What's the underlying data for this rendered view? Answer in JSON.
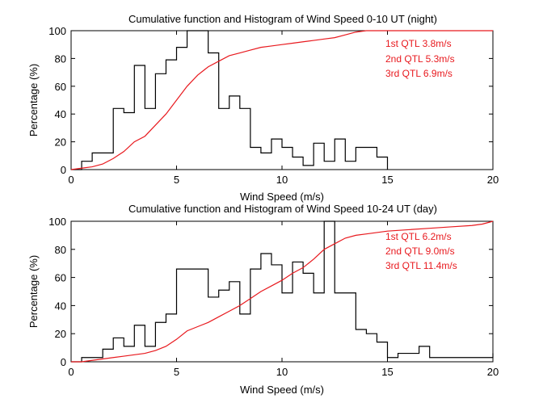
{
  "colors": {
    "background": "#ffffff",
    "axis": "#000000",
    "histogram": "#000000",
    "cumulative": "#e8191e",
    "annotation": "#e8191e"
  },
  "chart_data": [
    {
      "type": "line",
      "title": "Cumulative function and Histogram of Wind Speed 0-10 UT (night)",
      "xlabel": "Wind Speed (m/s)",
      "ylabel": "Percentage (%)",
      "xlim": [
        0,
        20
      ],
      "ylim": [
        0,
        100
      ],
      "xticks": [
        "0",
        "5",
        "10",
        "15",
        "20"
      ],
      "yticks": [
        "0",
        "20",
        "40",
        "60",
        "80",
        "100"
      ],
      "grid": false,
      "annotations": [
        "1st QTL 3.8m/s",
        "2nd QTL 5.3m/s",
        "3rd QTL 6.9m/s"
      ],
      "series": [
        {
          "name": "Histogram",
          "style": "stairs",
          "x": [
            0,
            0.5,
            1,
            2,
            2.5,
            3,
            3.5,
            4,
            4.5,
            5,
            5.5,
            6,
            6.5,
            7,
            7.5,
            8,
            8.5,
            9,
            9.5,
            10,
            10.5,
            11,
            11.5,
            12,
            12.5,
            13,
            13.5,
            14,
            14.5,
            15
          ],
          "values": [
            0,
            6,
            12,
            44,
            41,
            75,
            44,
            69,
            79,
            88,
            100,
            100,
            84,
            44,
            53,
            44,
            16,
            12,
            22,
            16,
            9,
            3,
            19,
            6,
            22,
            6,
            16,
            16,
            9,
            0
          ]
        },
        {
          "name": "Cumulative",
          "style": "line",
          "x": [
            0,
            0.5,
            1,
            1.5,
            2,
            2.5,
            3,
            3.5,
            4,
            4.5,
            5,
            5.5,
            6,
            6.5,
            7,
            7.5,
            8,
            8.5,
            9,
            9.5,
            10,
            10.5,
            11,
            11.5,
            12,
            12.5,
            13,
            13.5,
            14,
            15,
            16,
            17,
            18,
            19,
            20
          ],
          "values": [
            0,
            1,
            2,
            4,
            8,
            13,
            20,
            24,
            32,
            40,
            50,
            60,
            68,
            74,
            78,
            82,
            84,
            86,
            88,
            89,
            90,
            91,
            92,
            93,
            94,
            95,
            97,
            99,
            100,
            100,
            100,
            100,
            100,
            100,
            100
          ]
        }
      ]
    },
    {
      "type": "line",
      "title": "Cumulative function and Histogram of Wind Speed 10-24 UT (day)",
      "xlabel": "Wind Speed (m/s)",
      "ylabel": "Percentage (%)",
      "xlim": [
        0,
        20
      ],
      "ylim": [
        0,
        100
      ],
      "xticks": [
        "0",
        "5",
        "10",
        "15",
        "20"
      ],
      "yticks": [
        "0",
        "20",
        "40",
        "60",
        "80",
        "100"
      ],
      "grid": false,
      "annotations": [
        "1st QTL 6.2m/s",
        "2nd QTL 9.0m/s",
        "3rd QTL 11.4m/s"
      ],
      "series": [
        {
          "name": "Histogram",
          "style": "stairs",
          "x": [
            0,
            0.5,
            1.5,
            2,
            2.5,
            3,
            3.5,
            4,
            4.5,
            5,
            6,
            6.5,
            7,
            7.5,
            8,
            8.5,
            9,
            9.5,
            10,
            10.5,
            11,
            11.5,
            12,
            12.5,
            13,
            13.5,
            14,
            14.5,
            15,
            15.5,
            16.5,
            17,
            19.5,
            20
          ],
          "values": [
            0,
            3,
            9,
            17,
            11,
            26,
            11,
            28,
            34,
            66,
            66,
            46,
            51,
            57,
            34,
            66,
            77,
            69,
            49,
            71,
            63,
            49,
            100,
            49,
            49,
            23,
            20,
            14,
            3,
            6,
            11,
            3,
            3,
            6
          ]
        },
        {
          "name": "Cumulative",
          "style": "line",
          "x": [
            0,
            0.5,
            1,
            1.5,
            2,
            2.5,
            3,
            3.5,
            4,
            4.5,
            5,
            5.5,
            6,
            6.5,
            7,
            7.5,
            8,
            8.5,
            9,
            9.5,
            10,
            10.5,
            11,
            11.5,
            12,
            12.5,
            13,
            13.5,
            14,
            15,
            16,
            17,
            18,
            19,
            19.5,
            20
          ],
          "values": [
            0,
            0,
            1,
            2,
            3,
            4,
            5,
            6,
            8,
            11,
            16,
            22,
            25,
            28,
            32,
            36,
            40,
            45,
            50,
            54,
            58,
            63,
            67,
            73,
            80,
            84,
            88,
            90,
            91,
            93,
            94,
            95,
            96,
            97,
            98,
            100
          ]
        }
      ]
    }
  ]
}
